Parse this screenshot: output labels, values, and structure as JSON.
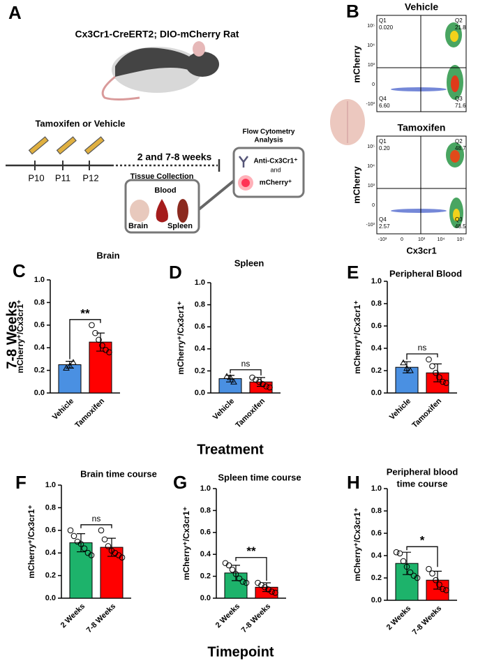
{
  "figure": {
    "row_label": "7-8 Weeks",
    "xlabel_row1": "Treatment",
    "xlabel_row2": "Timepoint",
    "panels": [
      "A",
      "B"
    ]
  },
  "diagram": {
    "title": "Cx3Cr1-CreERT2; DIO-mCherry Rat",
    "treatment": "Tamoxifen or Vehicle",
    "days": [
      "P10",
      "P11",
      "P12"
    ],
    "interval": "2 and 7-8 weeks",
    "tissue": {
      "title": "Tissue Collection",
      "items": [
        "Blood",
        "Brain",
        "Spleen"
      ]
    },
    "flow": {
      "title": [
        "Flow Cytometry",
        "Analysis"
      ],
      "marker1": "Anti-Cx3Cr1⁺",
      "and": "and",
      "marker2": "mCherry⁺"
    }
  },
  "flow": {
    "ylabel": "mCherry",
    "xlabel": "Cx3cr1",
    "yticks": [
      "10⁵",
      "10⁴",
      "10³",
      "0",
      "-10³"
    ],
    "xticks": [
      "-10³",
      "0",
      "10³",
      "10⁴",
      "10⁵"
    ],
    "plots": [
      {
        "title": "Vehicle",
        "quadrants": [
          [
            "Q1",
            "0.020"
          ],
          [
            "Q2",
            "21.8"
          ],
          [
            "Q3",
            "71.6"
          ],
          [
            "Q4",
            "6.60"
          ]
        ]
      },
      {
        "title": "Tamoxifen",
        "quadrants": [
          [
            "Q1",
            "0.20"
          ],
          [
            "Q2",
            "48.7"
          ],
          [
            "Q3",
            "48.5"
          ],
          [
            "Q4",
            "2.57"
          ]
        ]
      }
    ]
  },
  "chart_data": [
    {
      "type": "bar",
      "panel": "C",
      "title": [
        "Brain"
      ],
      "ylabel": "mCherry⁺/Cx3cr1⁺",
      "categories": [
        "Vehicle",
        "Tamoxifen"
      ],
      "values": [
        0.25,
        0.45
      ],
      "errors": [
        0.03,
        0.08
      ],
      "colors": [
        "#4a90e2",
        "#ff0000"
      ],
      "point_shapes": [
        "triangle",
        "circle"
      ],
      "points": [
        [
          0.22,
          0.24,
          0.27
        ],
        [
          0.6,
          0.53,
          0.47,
          0.42,
          0.38,
          0.36
        ]
      ],
      "annotation": "**",
      "ylim": [
        0,
        1
      ],
      "yticks": [
        {
          "value": 0,
          "label": "0.0"
        },
        0.2,
        0.4,
        0.6,
        0.8,
        {
          "value": 1,
          "label": "1.0"
        }
      ]
    },
    {
      "type": "bar",
      "panel": "D",
      "title": [
        "Spleen"
      ],
      "ylabel": "mCherry⁺/Cx3cr1⁺",
      "categories": [
        "Vehicle",
        "Tamoxifen"
      ],
      "values": [
        0.13,
        0.1
      ],
      "errors": [
        0.03,
        0.04
      ],
      "colors": [
        "#4a90e2",
        "#ff0000"
      ],
      "point_shapes": [
        "triangle",
        "circle"
      ],
      "points": [
        [
          0.15,
          0.14,
          0.1
        ],
        [
          0.14,
          0.12,
          0.1,
          0.08,
          0.06,
          0.05
        ]
      ],
      "annotation": "ns",
      "ylim": [
        0,
        1
      ],
      "yticks": [
        {
          "value": 0,
          "label": "0.0"
        },
        0.2,
        0.4,
        0.6,
        0.8,
        {
          "value": 1,
          "label": "1.0"
        }
      ]
    },
    {
      "type": "bar",
      "panel": "E",
      "title": [
        "Peripheral Blood"
      ],
      "ylabel": "mCherry⁺/Cx3cr1⁺",
      "categories": [
        "Vehicle",
        "Tamoxifen"
      ],
      "values": [
        0.23,
        0.18
      ],
      "errors": [
        0.05,
        0.08
      ],
      "colors": [
        "#4a90e2",
        "#ff0000"
      ],
      "point_shapes": [
        "triangle",
        "circle"
      ],
      "points": [
        [
          0.27,
          0.22,
          0.2
        ],
        [
          0.3,
          0.24,
          0.18,
          0.14,
          0.1,
          0.09
        ]
      ],
      "annotation": "ns",
      "ylim": [
        0,
        1
      ],
      "yticks": [
        {
          "value": 0,
          "label": "0.0"
        },
        0.2,
        0.4,
        0.6,
        0.8,
        {
          "value": 1,
          "label": "1.0"
        }
      ]
    },
    {
      "type": "bar",
      "panel": "F",
      "title": [
        "Brain time course"
      ],
      "ylabel": "mCherry⁺/Cx3cr1⁺",
      "categories": [
        "2 Weeks",
        "7-8 Weeks"
      ],
      "values": [
        0.49,
        0.45
      ],
      "errors": [
        0.08,
        0.08
      ],
      "colors": [
        "#1db36b",
        "#ff0000"
      ],
      "point_shapes": [
        "circle",
        "circle"
      ],
      "points": [
        [
          0.6,
          0.55,
          0.5,
          0.48,
          0.44,
          0.4,
          0.38
        ],
        [
          0.6,
          0.52,
          0.46,
          0.42,
          0.4,
          0.38,
          0.36
        ]
      ],
      "annotation": "ns",
      "ylim": [
        0,
        1
      ],
      "yticks": [
        {
          "value": 0,
          "label": "0.0"
        },
        0.2,
        0.4,
        0.6,
        0.8,
        {
          "value": 1,
          "label": "1.0"
        }
      ]
    },
    {
      "type": "bar",
      "panel": "G",
      "title": [
        "Spleen time course"
      ],
      "ylabel": "mCherry⁺/Cx3cr1⁺",
      "categories": [
        "2 Weeks",
        "7-8 Weeks"
      ],
      "values": [
        0.23,
        0.1
      ],
      "errors": [
        0.07,
        0.04
      ],
      "colors": [
        "#1db36b",
        "#ff0000"
      ],
      "point_shapes": [
        "circle",
        "circle"
      ],
      "points": [
        [
          0.32,
          0.3,
          0.26,
          0.22,
          0.18,
          0.15,
          0.14
        ],
        [
          0.14,
          0.12,
          0.1,
          0.08,
          0.06,
          0.05
        ]
      ],
      "annotation": "**",
      "ylim": [
        0,
        1
      ],
      "yticks": [
        {
          "value": 0,
          "label": "0.0"
        },
        0.2,
        0.4,
        0.6,
        0.8,
        {
          "value": 1,
          "label": "1.0"
        }
      ]
    },
    {
      "type": "bar",
      "panel": "H",
      "title": [
        "Peripheral blood",
        "time course"
      ],
      "ylabel": "mCherry⁺/Cx3cr1⁺",
      "categories": [
        "2 Weeks",
        "7-8 Weeks"
      ],
      "values": [
        0.33,
        0.18
      ],
      "errors": [
        0.1,
        0.08
      ],
      "colors": [
        "#1db36b",
        "#ff0000"
      ],
      "point_shapes": [
        "circle",
        "circle"
      ],
      "points": [
        [
          0.43,
          0.42,
          0.35,
          0.3,
          0.25,
          0.22,
          0.2
        ],
        [
          0.28,
          0.24,
          0.18,
          0.14,
          0.1,
          0.09
        ]
      ],
      "annotation": "*",
      "ylim": [
        0,
        1
      ],
      "yticks": [
        {
          "value": 0,
          "label": "0.0"
        },
        0.2,
        0.4,
        0.6,
        0.8,
        {
          "value": 1,
          "label": "1.0"
        }
      ]
    }
  ]
}
